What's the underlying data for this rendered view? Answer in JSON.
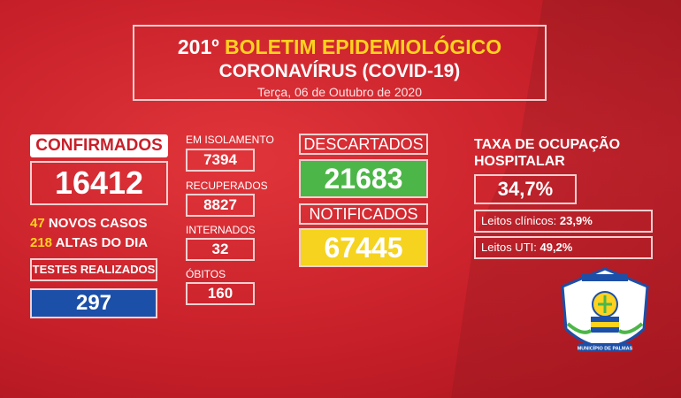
{
  "header": {
    "number": "201º",
    "title": "BOLETIM EPIDEMIOLÓGICO",
    "subtitle": "CORONAVÍRUS (COVID-19)",
    "date": "Terça,  06 de  Outubro de 2020"
  },
  "confirmados": {
    "label": "CONFIRMADOS",
    "value": "16412"
  },
  "novos_casos": {
    "value": "47",
    "label": "NOVOS CASOS"
  },
  "altas": {
    "value": "218",
    "label": "ALTAS DO DIA"
  },
  "testes": {
    "label": "TESTES REALIZADOS",
    "value": "297"
  },
  "isolamento": {
    "label": "EM ISOLAMENTO",
    "value": "7394"
  },
  "recuperados": {
    "label": "RECUPERADOS",
    "value": "8827"
  },
  "internados": {
    "label": "INTERNADOS",
    "value": "32"
  },
  "obitos": {
    "label": "ÓBITOS",
    "value": "160"
  },
  "descartados": {
    "label": "DESCARTADOS",
    "value": "21683"
  },
  "notificados": {
    "label": "NOTIFICADOS",
    "value": "67445"
  },
  "ocupacao": {
    "label_line1": "TAXA DE OCUPAÇÃO",
    "label_line2": "HOSPITALAR",
    "value": "34,7%",
    "clinicos_label": "Leitos clínicos:",
    "clinicos_value": "23,9%",
    "uti_label": "Leitos UTI:",
    "uti_value": "49,2%"
  },
  "seal": {
    "text": "MUNICÍPIO DE PALMAS"
  },
  "colors": {
    "background": "#c8202a",
    "accent_yellow": "#ffd21f",
    "green": "#4cb648",
    "blue": "#1c4fa8"
  }
}
